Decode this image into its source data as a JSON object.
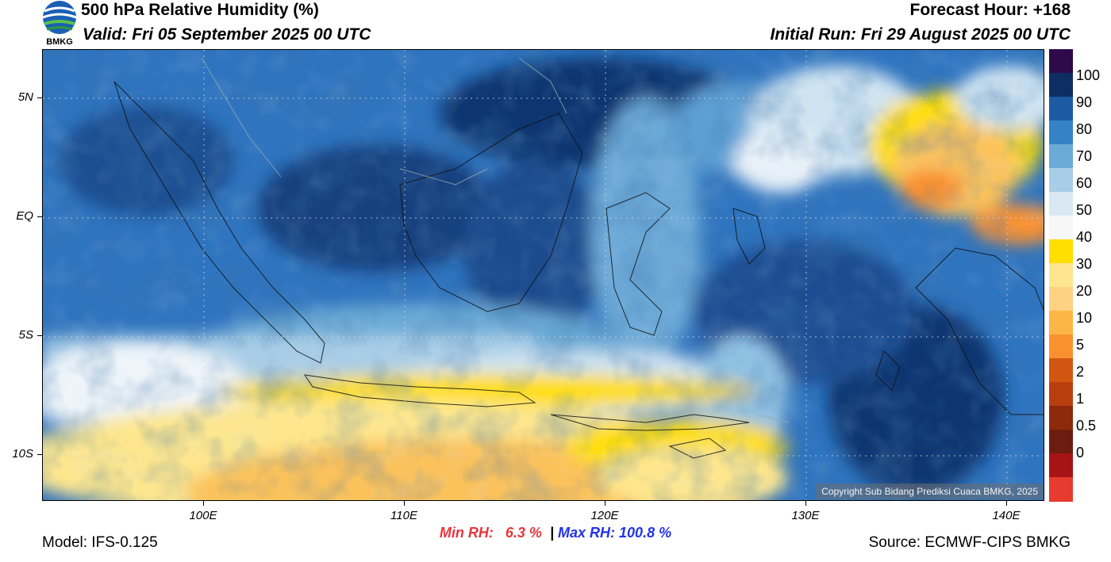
{
  "header": {
    "title": "500 hPa Relative Humidity (%)",
    "valid": "Valid: Fri 05 September 2025 00 UTC",
    "forecast_hour": "Forecast Hour: +168",
    "initial_run": "Initial Run: Fri 29 August 2025 00 UTC"
  },
  "logo": {
    "text": "BMKG",
    "icon": "bmkg-logo-icon"
  },
  "map": {
    "lat_labels": [
      "5N",
      "EQ",
      "5S",
      "10S"
    ],
    "lon_labels": [
      "100E",
      "110E",
      "120E",
      "130E",
      "140E"
    ],
    "copyright": "Copyright Sub Bidang Prediksi Cuaca BMKG, 2025"
  },
  "stats": {
    "min_label": "Min RH:",
    "min_value": "6.3 %",
    "separator": "|",
    "max_label": "Max RH:",
    "max_value": "100.8 %",
    "min_color": "#e8363c",
    "max_color": "#2233e8"
  },
  "colorbar": {
    "ticks": [
      "100",
      "90",
      "80",
      "70",
      "60",
      "50",
      "40",
      "30",
      "20",
      "10",
      "5",
      "2",
      "1",
      "0.5",
      "0"
    ],
    "colors": [
      "#2e0a4a",
      "#0c2e63",
      "#1d5aa5",
      "#3583c6",
      "#6aaad6",
      "#a8cde6",
      "#d9e8f3",
      "#f7f7f7",
      "#ffde00",
      "#fde68e",
      "#fdd283",
      "#fbb646",
      "#f99131",
      "#d2560f",
      "#b93e0d",
      "#8c2a0b",
      "#6d1d0f",
      "#a71416",
      "#e63b2e"
    ]
  },
  "footer": {
    "model": "Model: IFS-0.125",
    "source": "Source: ECMWF-CIPS BMKG"
  }
}
